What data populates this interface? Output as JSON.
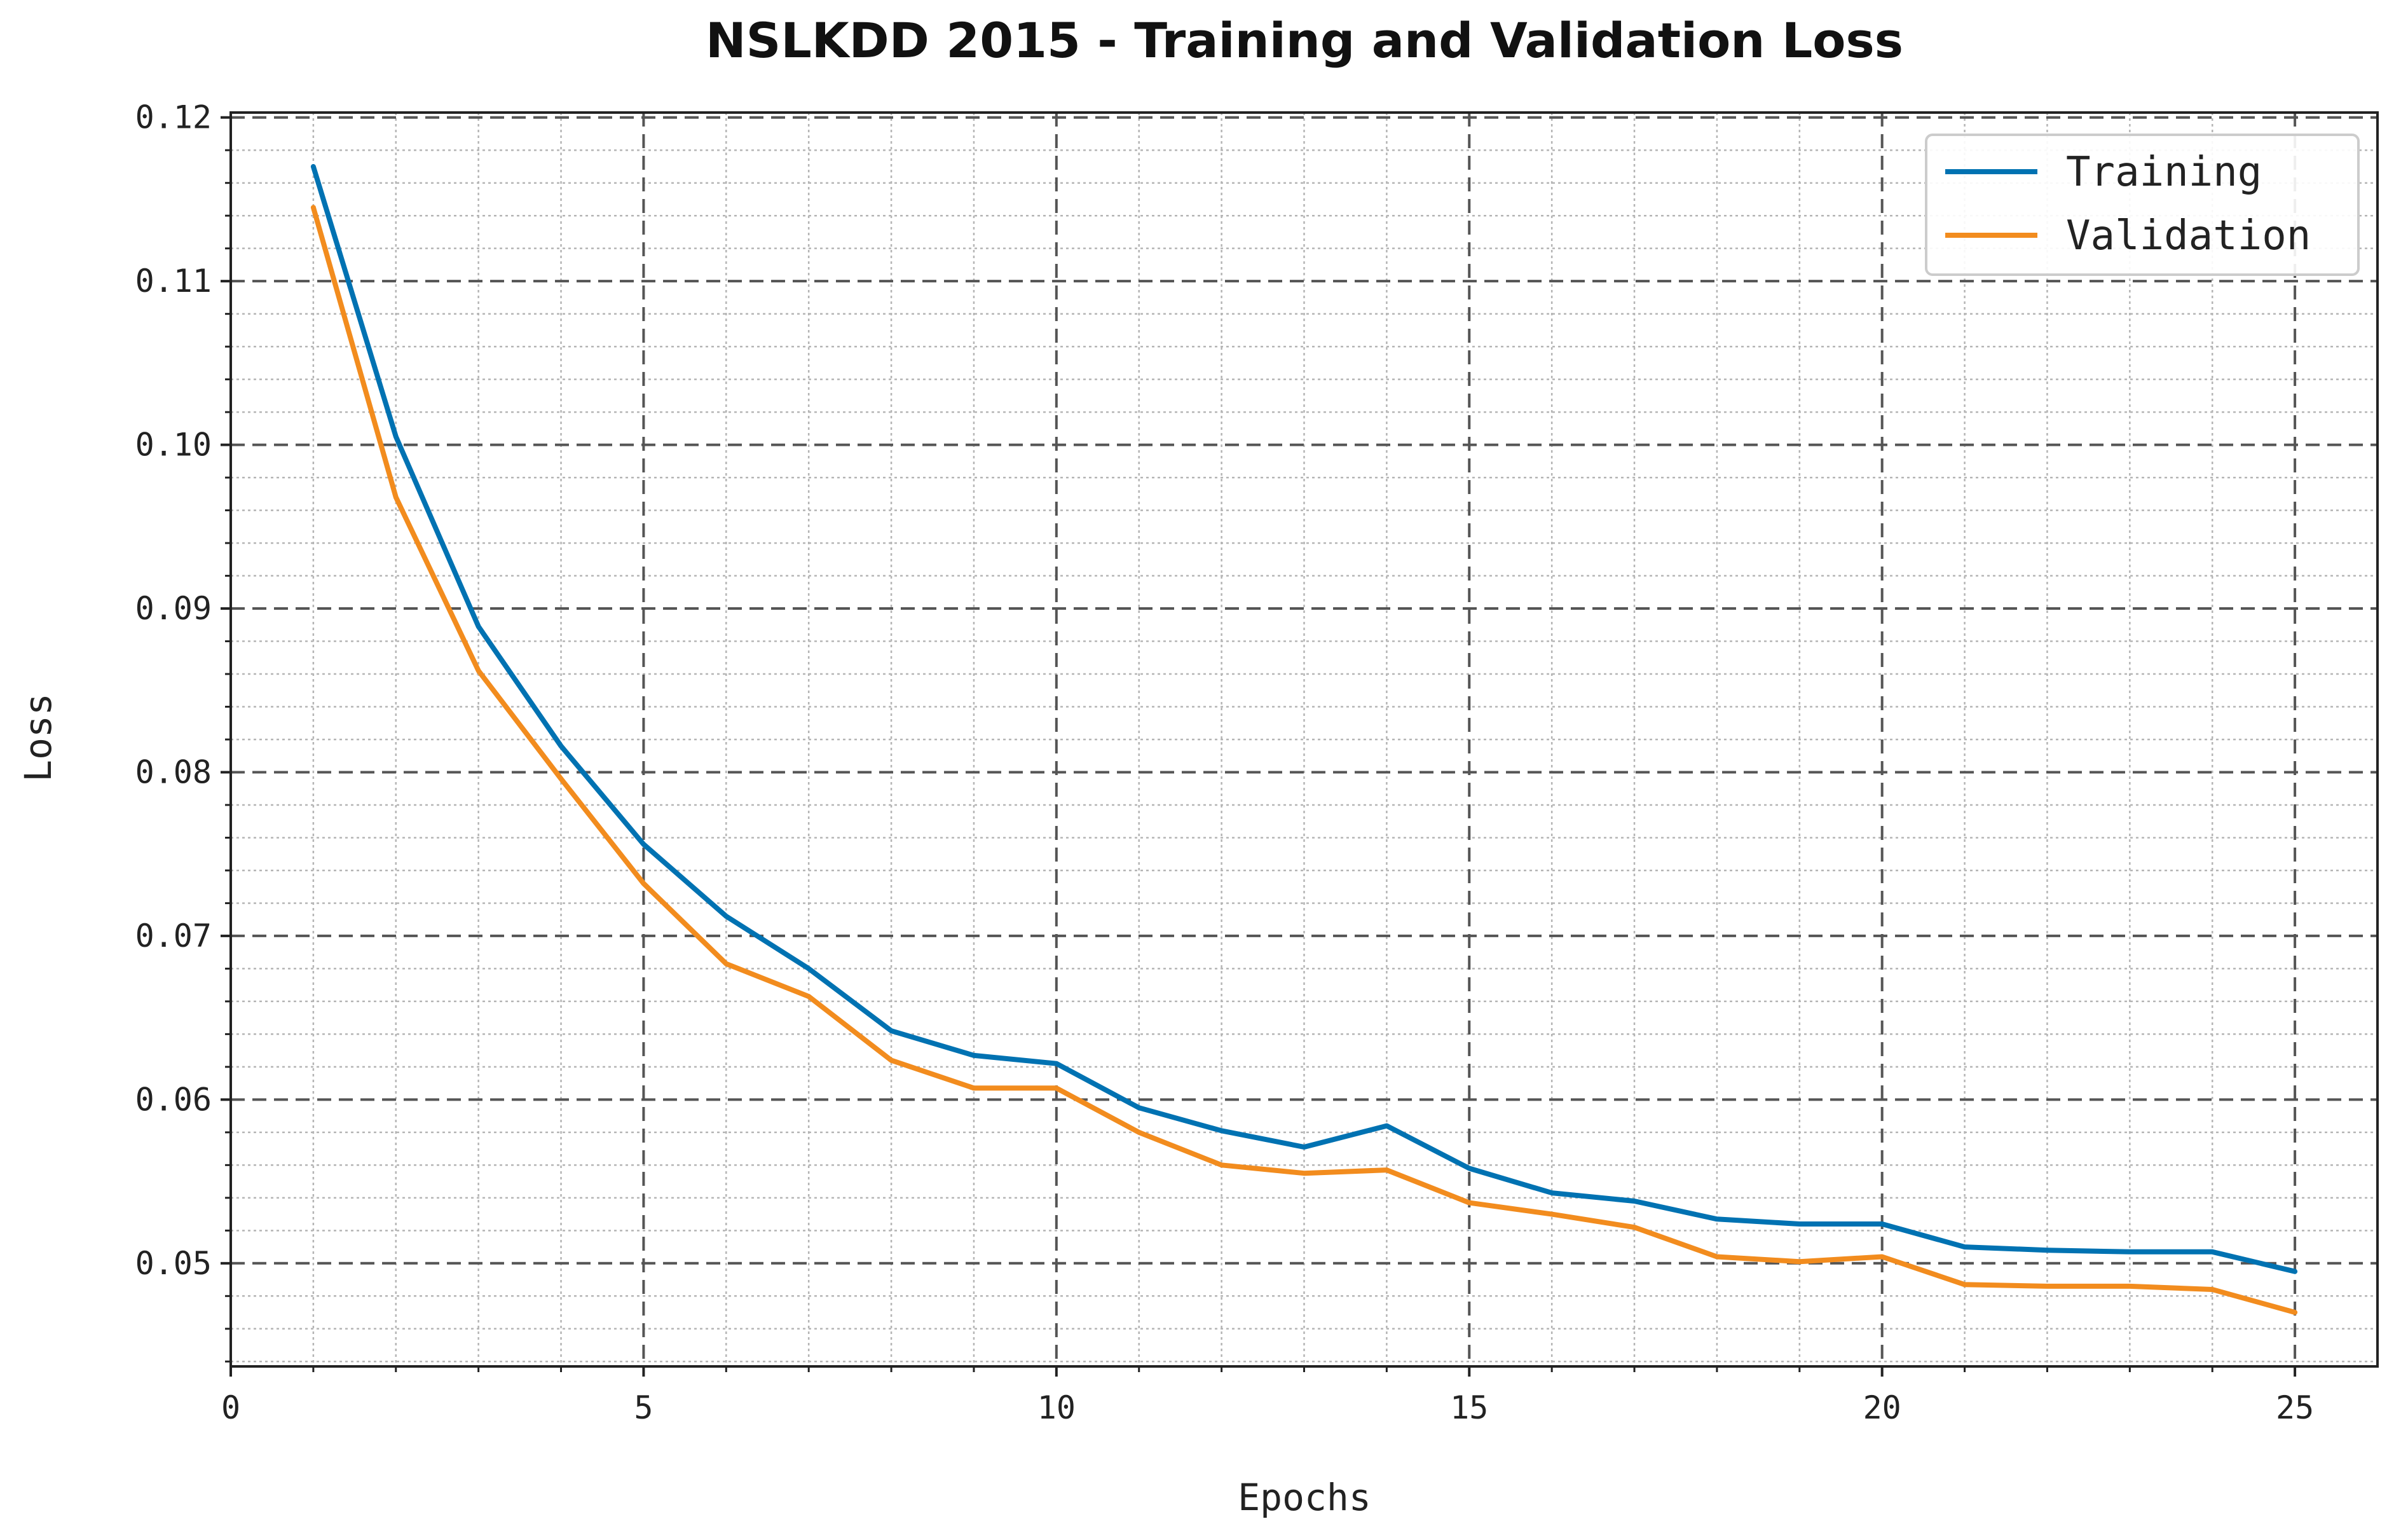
{
  "chart_data": {
    "type": "line",
    "title": "NSLKDD 2015 - Training and Validation Loss",
    "xlabel": "Epochs",
    "ylabel": "Loss",
    "xlim": [
      0,
      26
    ],
    "ylim": [
      0.0437,
      0.1203
    ],
    "xticks": [
      0,
      5,
      10,
      15,
      20,
      25
    ],
    "xtick_labels": [
      "0",
      "5",
      "10",
      "15",
      "20",
      "25"
    ],
    "yticks": [
      0.05,
      0.06,
      0.07,
      0.08,
      0.09,
      0.1,
      0.11,
      0.12
    ],
    "ytick_labels": [
      "0.05",
      "0.06",
      "0.07",
      "0.08",
      "0.09",
      "0.10",
      "0.11",
      "0.12"
    ],
    "grid": true,
    "legend_position": "top-right",
    "x": [
      1,
      2,
      3,
      4,
      5,
      6,
      7,
      8,
      9,
      10,
      11,
      12,
      13,
      14,
      15,
      16,
      17,
      18,
      19,
      20,
      21,
      22,
      23,
      24,
      25
    ],
    "series": [
      {
        "name": "Training",
        "color": "#0072B2",
        "values": [
          0.117,
          0.1005,
          0.0889,
          0.0816,
          0.0756,
          0.0712,
          0.068,
          0.0642,
          0.0627,
          0.0622,
          0.0595,
          0.0581,
          0.0571,
          0.0584,
          0.0558,
          0.0543,
          0.0538,
          0.0527,
          0.0524,
          0.0524,
          0.051,
          0.0508,
          0.0507,
          0.0507,
          0.0495
        ]
      },
      {
        "name": "Validation",
        "color": "#F28C1E",
        "values": [
          0.1145,
          0.0968,
          0.0862,
          0.0796,
          0.0732,
          0.0683,
          0.0663,
          0.0624,
          0.0607,
          0.0607,
          0.058,
          0.056,
          0.0555,
          0.0557,
          0.0537,
          0.053,
          0.0522,
          0.0504,
          0.0501,
          0.0504,
          0.0487,
          0.0486,
          0.0486,
          0.0484,
          0.047
        ]
      }
    ]
  }
}
